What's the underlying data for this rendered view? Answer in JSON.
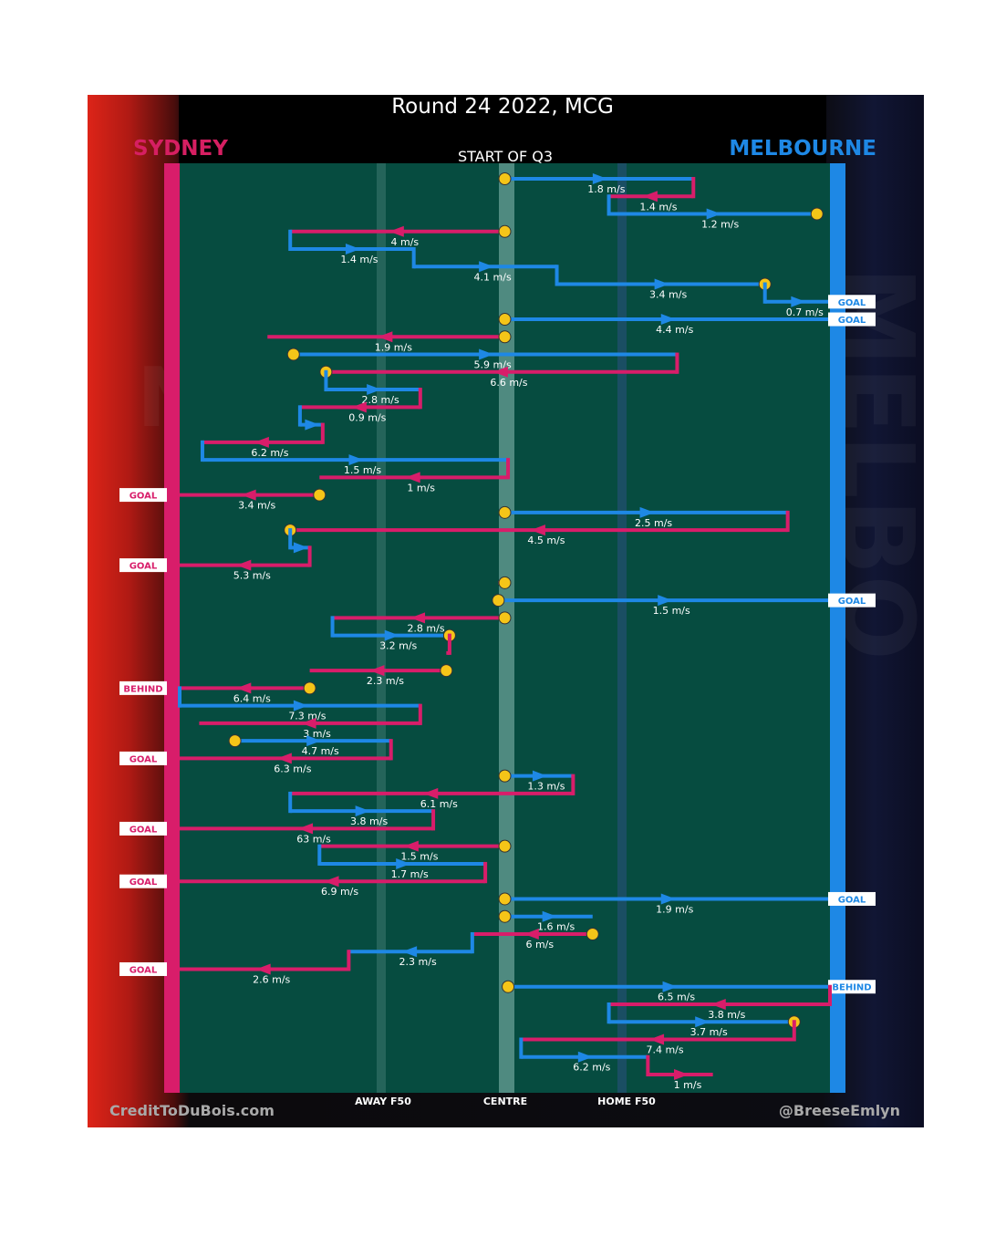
{
  "page": {
    "title": "Round 24 2022, MCG",
    "subtitle": "START OF Q3"
  },
  "teams": {
    "home": "SYDNEY",
    "away": "MELBOURNE"
  },
  "colors": {
    "home": "#d81d6a",
    "away": "#1e88e5",
    "node": "#f5c518",
    "field": "#064c40"
  },
  "axis_labels": {
    "away_f50": "AWAY F50",
    "centre": "CENTRE",
    "home_f50": "HOME F50"
  },
  "credits": {
    "left": "CreditToDuBois.com",
    "right": "@BreeseEmlyn"
  },
  "outcome_labels": {
    "goal": "GOAL",
    "behind": "BEHIND"
  },
  "chart_data": {
    "type": "line",
    "description_units": "x: field position (0 = Sydney goal line, 100 = Melbourne goal line); each row is one movement of play",
    "x_range": [
      0,
      100
    ],
    "x_ticks": [
      {
        "label": "AWAY F50",
        "x": 31.5
      },
      {
        "label": "CENTRE",
        "x": 50
      },
      {
        "label": "HOME F50",
        "x": 68.6
      }
    ],
    "segments": [
      {
        "team": "away",
        "x0": 50,
        "x1": 79,
        "dir": "R",
        "label": "1.8 m/s",
        "ja": 72,
        "cm": false,
        "cs": true
      },
      {
        "team": "home",
        "x0": 79,
        "x1": 66,
        "dir": "L",
        "label": "1.4 m/s"
      },
      {
        "team": "away",
        "x0": 66,
        "x1": 98,
        "dir": "R",
        "label": "1.2 m/s",
        "ce": true
      },
      {
        "team": "home",
        "x0": 50,
        "x1": 17,
        "dir": "L",
        "label": "4 m/s",
        "cs": true
      },
      {
        "team": "away",
        "x0": 17,
        "x1": 36,
        "dir": "R",
        "label": "1.4 m/s"
      },
      {
        "team": "away",
        "x0": 36,
        "x1": 58,
        "dir": "R",
        "label": "4.1 m/s"
      },
      {
        "team": "away",
        "x0": 58,
        "x1": 90,
        "dir": "R",
        "label": "3.4 m/s",
        "ce": true
      },
      {
        "team": "away",
        "x0": 90,
        "x1": 100,
        "dir": "R",
        "label": "0.7 m/s",
        "outcome": "goal"
      },
      {
        "team": "away",
        "x0": 50,
        "x1": 100,
        "dir": "R",
        "label": "4.4 m/s",
        "cs": true,
        "outcome": "goal"
      },
      {
        "team": "home",
        "x0": 50,
        "x1": 13.5,
        "dir": "L",
        "label": "1.9 m/s",
        "cs": true
      },
      {
        "team": "away",
        "x0": 17.5,
        "x1": 76.5,
        "dir": "R",
        "label": "5.9 m/s",
        "cs": true
      },
      {
        "team": "home",
        "x0": 76.5,
        "x1": 22.5,
        "dir": "L",
        "label": "6.6 m/s",
        "ce0": true
      },
      {
        "team": "away",
        "x0": 22.5,
        "x1": 37,
        "dir": "R",
        "label": "2.8 m/s"
      },
      {
        "team": "home",
        "x0": 37,
        "x1": 18.5,
        "dir": "L",
        "label": "0.9 m/s"
      },
      {
        "team": "away",
        "x0": 18.5,
        "x1": 22,
        "dir": "R",
        "label": ""
      },
      {
        "team": "home",
        "x0": 22,
        "x1": 3.5,
        "dir": "L",
        "label": "6.2 m/s"
      },
      {
        "team": "away",
        "x0": 3.5,
        "x1": 50.5,
        "dir": "R",
        "label": "1.5 m/s"
      },
      {
        "team": "home",
        "x0": 50.5,
        "x1": 21.5,
        "dir": "L",
        "label": "1 m/s"
      },
      {
        "team": "home",
        "x0": 21.5,
        "x1": 0,
        "dir": "L",
        "label": "3.4 m/s",
        "cs": true,
        "outcome": "goal"
      },
      {
        "team": "away",
        "x0": 50,
        "x1": 93.5,
        "dir": "R",
        "label": "2.5 m/s",
        "cs": true
      },
      {
        "team": "home",
        "x0": 93.5,
        "x1": 17,
        "dir": "L",
        "label": "4.5 m/s",
        "ce0": true
      },
      {
        "team": "away",
        "x0": 17,
        "x1": 20,
        "dir": "R",
        "label": ""
      },
      {
        "team": "home",
        "x0": 20,
        "x1": 0,
        "dir": "L",
        "label": "5.3 m/s",
        "outcome": "goal"
      },
      {
        "team": "home",
        "x0": 50,
        "x1": 49,
        "dir": "L",
        "label": "",
        "cs": true
      },
      {
        "team": "away",
        "x0": 49,
        "x1": 100,
        "dir": "R",
        "label": "1.5 m/s",
        "cs": true,
        "outcome": "goal"
      },
      {
        "team": "home",
        "x0": 50,
        "x1": 23.5,
        "dir": "L",
        "label": "2.8 m/s",
        "cs": true
      },
      {
        "team": "away",
        "x0": 23.5,
        "x1": 41.5,
        "dir": "R",
        "label": "3.2 m/s",
        "ce": true
      },
      {
        "team": "home",
        "x0": 41.5,
        "x1": 41,
        "dir": "L",
        "label": ""
      },
      {
        "team": "home",
        "x0": 41,
        "x1": 20,
        "dir": "L",
        "label": "2.3 m/s",
        "cs": true
      },
      {
        "team": "home",
        "x0": 20,
        "x1": 0,
        "dir": "L",
        "label": "6.4 m/s",
        "cs": true,
        "outcome": "behind"
      },
      {
        "team": "away",
        "x0": 0,
        "x1": 37,
        "dir": "R",
        "label": "7.3 m/s"
      },
      {
        "team": "home",
        "x0": 37,
        "x1": 3,
        "dir": "L",
        "label": "3 m/s"
      },
      {
        "team": "away",
        "x0": 8.5,
        "x1": 32.5,
        "dir": "R",
        "label": "4.7 m/s",
        "cs": true
      },
      {
        "team": "home",
        "x0": 32.5,
        "x1": 0,
        "dir": "L",
        "label": "6.3 m/s",
        "outcome": "goal"
      },
      {
        "team": "away",
        "x0": 50,
        "x1": 60.5,
        "dir": "R",
        "label": "1.3 m/s",
        "cs": true
      },
      {
        "team": "home",
        "x0": 60.5,
        "x1": 17,
        "dir": "L",
        "label": "6.1 m/s"
      },
      {
        "team": "away",
        "x0": 17,
        "x1": 39,
        "dir": "R",
        "label": "3.8 m/s"
      },
      {
        "team": "home",
        "x0": 39,
        "x1": 0,
        "dir": "L",
        "label": "63 m/s",
        "outcome": "goal"
      },
      {
        "team": "home",
        "x0": 50,
        "x1": 21.5,
        "dir": "L",
        "label": "1.5 m/s",
        "cs": true
      },
      {
        "team": "away",
        "x0": 21.5,
        "x1": 47,
        "dir": "R",
        "label": "1.7 m/s"
      },
      {
        "team": "home",
        "x0": 47,
        "x1": 0,
        "dir": "L",
        "label": "6.9 m/s",
        "outcome": "goal"
      },
      {
        "team": "away",
        "x0": 50,
        "x1": 100,
        "dir": "R",
        "label": "1.9 m/s",
        "cs": true,
        "outcome": "goal"
      },
      {
        "team": "away",
        "x0": 50,
        "x1": 63.5,
        "dir": "R",
        "label": "1.6 m/s",
        "cs": true
      },
      {
        "team": "home",
        "x0": 63.5,
        "x1": 45,
        "dir": "L",
        "label": "6 m/s",
        "cs": true
      },
      {
        "team": "away",
        "x0": 45,
        "x1": 26,
        "dir": "L",
        "label": "2.3 m/s"
      },
      {
        "team": "home",
        "x0": 26,
        "x1": 0,
        "dir": "L",
        "label": "2.6 m/s",
        "outcome": "goal"
      },
      {
        "team": "away",
        "x0": 50.5,
        "x1": 100,
        "dir": "R",
        "label": "6.5 m/s",
        "cs": true,
        "outcome": "behind"
      },
      {
        "team": "home",
        "x0": 100,
        "x1": 66,
        "dir": "L",
        "label": "3.8 m/s"
      },
      {
        "team": "away",
        "x0": 66,
        "x1": 94.5,
        "dir": "R",
        "label": "3.7 m/s",
        "ce": true
      },
      {
        "team": "home",
        "x0": 94.5,
        "x1": 52.5,
        "dir": "L",
        "label": "7.4 m/s"
      },
      {
        "team": "away",
        "x0": 52.5,
        "x1": 72,
        "dir": "R",
        "label": "6.2 m/s"
      },
      {
        "team": "home",
        "x0": 72,
        "x1": 82,
        "dir": "R",
        "label": "1 m/s"
      }
    ]
  }
}
